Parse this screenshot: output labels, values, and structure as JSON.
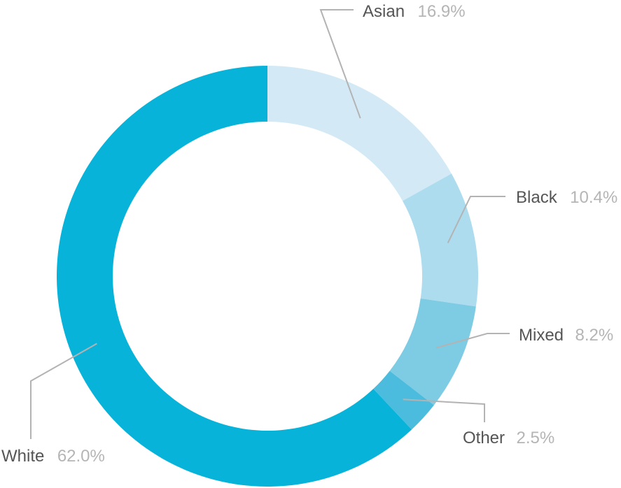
{
  "chart_data": {
    "type": "pie",
    "variant": "donut",
    "title": "",
    "slices": [
      {
        "label": "Asian",
        "value": 16.9,
        "display": "16.9%",
        "color": "#d3eaf6"
      },
      {
        "label": "Black",
        "value": 10.4,
        "display": "10.4%",
        "color": "#addcee"
      },
      {
        "label": "Mixed",
        "value": 8.2,
        "display": "8.2%",
        "color": "#7ecbe4"
      },
      {
        "label": "Other",
        "value": 2.5,
        "display": "2.5%",
        "color": "#4bbcdd"
      },
      {
        "label": "White",
        "value": 62.0,
        "display": "62.0%",
        "color": "#08b3da"
      }
    ],
    "legend": "none",
    "label_style": "external labels with leader lines"
  }
}
